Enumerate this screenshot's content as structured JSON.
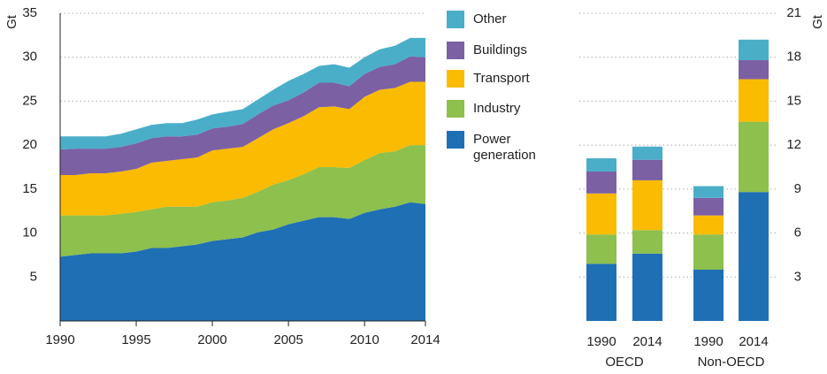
{
  "chart_data": [
    {
      "type": "area",
      "y_label": "Gt",
      "x": [
        1990,
        1991,
        1992,
        1993,
        1994,
        1995,
        1996,
        1997,
        1998,
        1999,
        2000,
        2001,
        2002,
        2003,
        2004,
        2005,
        2006,
        2007,
        2008,
        2009,
        2010,
        2011,
        2012,
        2013,
        2014
      ],
      "xlim": [
        1990,
        2014
      ],
      "xticks": [
        1990,
        1995,
        2000,
        2005,
        2010,
        2014
      ],
      "ylim": [
        0,
        35
      ],
      "yticks": [
        5,
        10,
        15,
        20,
        25,
        30,
        35
      ],
      "grid": true,
      "series": [
        {
          "name": "Power generation",
          "color": "#1f6fb5",
          "values": [
            7.3,
            7.5,
            7.7,
            7.7,
            7.7,
            7.9,
            8.3,
            8.3,
            8.5,
            8.7,
            9.1,
            9.3,
            9.5,
            10.1,
            10.4,
            11.0,
            11.4,
            11.8,
            11.8,
            11.6,
            12.3,
            12.7,
            13.0,
            13.5,
            13.3
          ]
        },
        {
          "name": "Industry",
          "color": "#8dc04d",
          "values": [
            4.7,
            4.5,
            4.3,
            4.3,
            4.5,
            4.5,
            4.4,
            4.7,
            4.5,
            4.3,
            4.4,
            4.4,
            4.5,
            4.6,
            5.1,
            5.0,
            5.3,
            5.7,
            5.7,
            5.8,
            6.0,
            6.4,
            6.3,
            6.5,
            6.7
          ]
        },
        {
          "name": "Transport",
          "color": "#fbbb00",
          "values": [
            4.6,
            4.6,
            4.8,
            4.8,
            4.8,
            4.9,
            5.3,
            5.2,
            5.4,
            5.6,
            5.9,
            5.9,
            5.8,
            6.1,
            6.3,
            6.5,
            6.6,
            6.8,
            6.9,
            6.7,
            7.2,
            7.2,
            7.2,
            7.2,
            7.2
          ]
        },
        {
          "name": "Buildings",
          "color": "#7b60a4",
          "values": [
            2.9,
            3.0,
            2.8,
            2.8,
            2.8,
            2.9,
            2.8,
            2.8,
            2.6,
            2.6,
            2.5,
            2.5,
            2.6,
            2.7,
            2.7,
            2.6,
            2.7,
            2.8,
            2.7,
            2.6,
            2.6,
            2.6,
            2.7,
            2.9,
            2.8
          ]
        },
        {
          "name": "Other",
          "color": "#4aaec9",
          "values": [
            1.5,
            1.4,
            1.4,
            1.4,
            1.5,
            1.6,
            1.5,
            1.5,
            1.5,
            1.7,
            1.6,
            1.7,
            1.7,
            1.7,
            1.8,
            2.2,
            2.1,
            1.9,
            2.1,
            2.1,
            1.9,
            2.0,
            2.1,
            2.1,
            2.2
          ]
        }
      ]
    },
    {
      "type": "bar",
      "stacked": true,
      "y_label": "Gt",
      "categories": [
        "1990",
        "2014",
        "1990",
        "2014"
      ],
      "groups": [
        "OECD",
        "Non-OECD"
      ],
      "ylim": [
        0,
        21
      ],
      "yticks": [
        3,
        6,
        9,
        12,
        15,
        18,
        21
      ],
      "grid": true,
      "series": [
        {
          "name": "Power generation",
          "color": "#1f6fb5",
          "values": [
            3.9,
            4.6,
            3.5,
            8.8
          ]
        },
        {
          "name": "Industry",
          "color": "#8dc04d",
          "values": [
            2.0,
            1.6,
            2.4,
            4.8
          ]
        },
        {
          "name": "Transport",
          "color": "#fbbb00",
          "values": [
            2.8,
            3.4,
            1.3,
            2.9
          ]
        },
        {
          "name": "Buildings",
          "color": "#7b60a4",
          "values": [
            1.5,
            1.4,
            1.2,
            1.3
          ]
        },
        {
          "name": "Other",
          "color": "#4aaec9",
          "values": [
            0.9,
            0.9,
            0.8,
            1.4
          ]
        }
      ]
    }
  ]
}
